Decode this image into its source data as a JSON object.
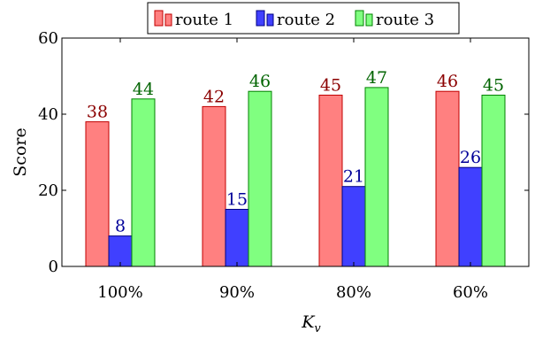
{
  "chart_data": {
    "type": "bar",
    "title": "",
    "xlabel": "K",
    "xlabel_subscript": "v",
    "ylabel": "Score",
    "categories": [
      "100%",
      "90%",
      "80%",
      "60%"
    ],
    "ylim": [
      0,
      60
    ],
    "yticks": [
      0,
      20,
      40,
      60
    ],
    "grid": false,
    "legend_position": "top-center",
    "series": [
      {
        "name": "route 1",
        "values": [
          38,
          42,
          45,
          46
        ],
        "fill": "#ff8080",
        "stroke": "#c00000",
        "label_color": "#8b0000"
      },
      {
        "name": "route 2",
        "values": [
          8,
          15,
          21,
          26
        ],
        "fill": "#4040ff",
        "stroke": "#000080",
        "label_color": "#000099"
      },
      {
        "name": "route 3",
        "values": [
          44,
          46,
          47,
          45
        ],
        "fill": "#80ff80",
        "stroke": "#008000",
        "label_color": "#006400"
      }
    ]
  }
}
